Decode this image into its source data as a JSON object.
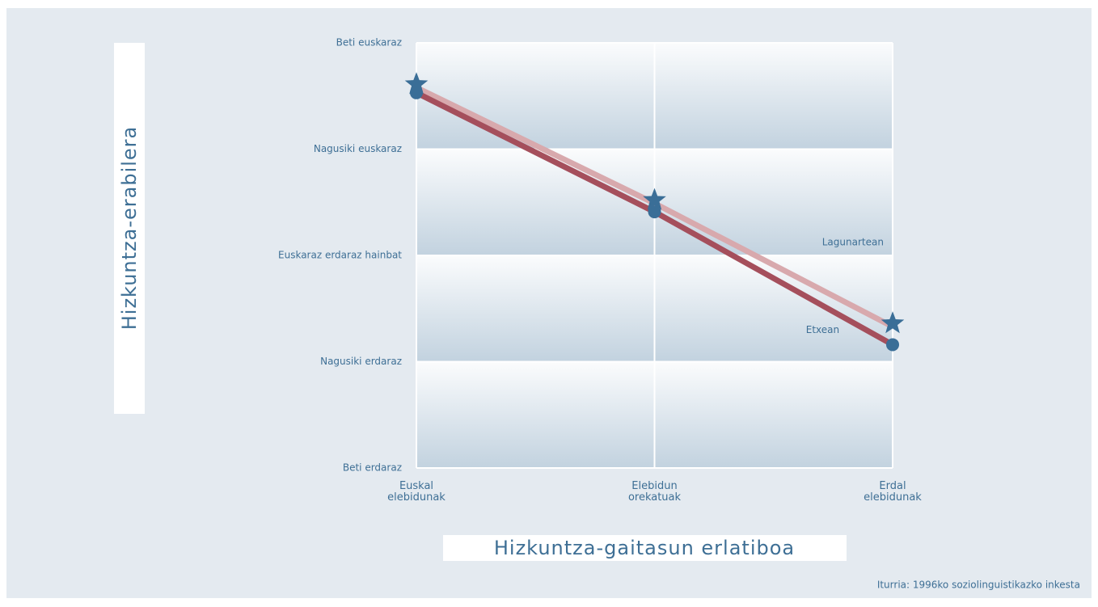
{
  "chart_data": {
    "type": "line",
    "x_label": "Hizkuntza-gaitasun erlatiboa",
    "y_label": "Hizkuntza-erabilera",
    "source": "Iturria: 1996ko soziolinguistikazko inkesta",
    "categories": [
      "Euskal\nelebidunak",
      "Elebidun\norekatuak",
      "Erdal\nelebidunak"
    ],
    "ylim": [
      0,
      4
    ],
    "yticks": [
      {
        "value": 0,
        "label": "Beti erdaraz"
      },
      {
        "value": 1,
        "label": "Nagusiki erdaraz"
      },
      {
        "value": 2,
        "label": "Euskaraz erdaraz hainbat"
      },
      {
        "value": 3,
        "label": "Nagusiki euskaraz"
      },
      {
        "value": 4,
        "label": "Beti euskaraz"
      }
    ],
    "grid": true,
    "series": [
      {
        "name": "Lagunartean",
        "color": "#d8a9ad",
        "marker": "star",
        "values": [
          3.58,
          2.49,
          1.33
        ]
      },
      {
        "name": "Etxean",
        "color": "#a54f5c",
        "marker": "circle",
        "values": [
          3.53,
          2.41,
          1.16
        ]
      }
    ]
  }
}
